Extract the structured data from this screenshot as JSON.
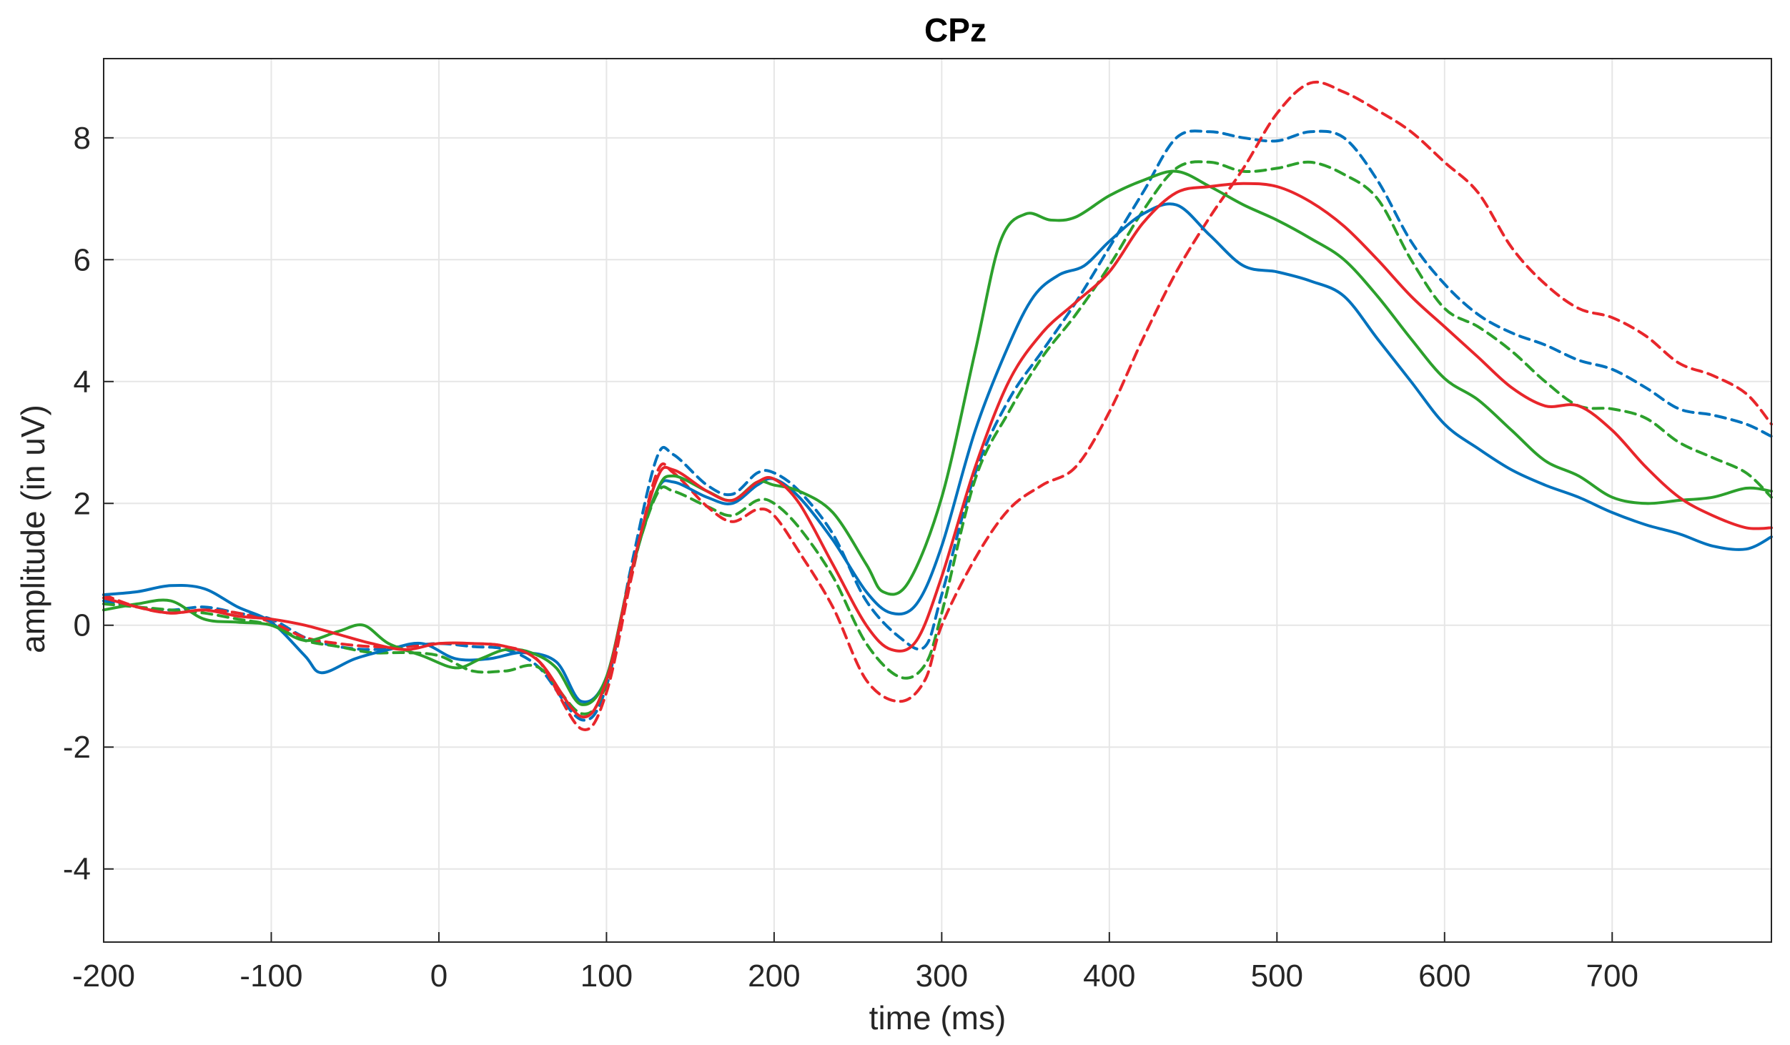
{
  "chart_data": {
    "type": "line",
    "title": "CPz",
    "xlabel": "time (ms)",
    "ylabel": "amplitude (in uV)",
    "xlim": [
      -200,
      795
    ],
    "ylim": [
      -5.2,
      9.3
    ],
    "xticks": [
      -200,
      -100,
      0,
      100,
      200,
      300,
      400,
      500,
      600,
      700
    ],
    "yticks": [
      -4,
      -2,
      0,
      2,
      4,
      6,
      8
    ],
    "grid": true,
    "legend": "none",
    "series": [
      {
        "name": "blue solid",
        "color": "#0072BD",
        "style": "solid",
        "x": [
          -200,
          -180,
          -160,
          -140,
          -120,
          -100,
          -80,
          -70,
          -50,
          -30,
          -10,
          10,
          30,
          50,
          70,
          85,
          100,
          115,
          130,
          140,
          160,
          175,
          190,
          200,
          215,
          235,
          255,
          270,
          285,
          300,
          320,
          340,
          355,
          370,
          385,
          400,
          420,
          440,
          460,
          480,
          500,
          520,
          540,
          560,
          580,
          600,
          620,
          640,
          660,
          680,
          700,
          720,
          740,
          760,
          780,
          795
        ],
        "y": [
          0.5,
          0.55,
          0.65,
          0.6,
          0.3,
          0.05,
          -0.5,
          -0.78,
          -0.55,
          -0.4,
          -0.3,
          -0.55,
          -0.55,
          -0.45,
          -0.6,
          -1.25,
          -0.85,
          0.9,
          2.2,
          2.35,
          2.1,
          2.0,
          2.3,
          2.4,
          2.1,
          1.4,
          0.55,
          0.2,
          0.35,
          1.3,
          3.2,
          4.6,
          5.4,
          5.75,
          5.9,
          6.3,
          6.75,
          6.9,
          6.4,
          5.9,
          5.8,
          5.65,
          5.4,
          4.7,
          4.0,
          3.3,
          2.9,
          2.55,
          2.3,
          2.1,
          1.85,
          1.65,
          1.5,
          1.3,
          1.25,
          1.45
        ]
      },
      {
        "name": "green solid",
        "color": "#2CA02C",
        "style": "solid",
        "x": [
          -200,
          -180,
          -160,
          -140,
          -120,
          -100,
          -80,
          -60,
          -45,
          -30,
          -10,
          10,
          25,
          40,
          55,
          70,
          85,
          100,
          115,
          130,
          140,
          160,
          175,
          190,
          200,
          215,
          235,
          255,
          265,
          280,
          300,
          320,
          335,
          350,
          365,
          380,
          400,
          420,
          440,
          460,
          480,
          500,
          520,
          540,
          560,
          580,
          600,
          620,
          640,
          660,
          680,
          700,
          720,
          740,
          760,
          780,
          795
        ],
        "y": [
          0.25,
          0.35,
          0.4,
          0.1,
          0.05,
          0.0,
          -0.25,
          -0.1,
          0.0,
          -0.3,
          -0.5,
          -0.7,
          -0.55,
          -0.4,
          -0.45,
          -0.7,
          -1.3,
          -0.85,
          0.9,
          2.2,
          2.45,
          2.2,
          2.05,
          2.35,
          2.3,
          2.2,
          1.85,
          1.0,
          0.55,
          0.7,
          2.1,
          4.5,
          6.3,
          6.75,
          6.65,
          6.7,
          7.05,
          7.3,
          7.45,
          7.2,
          6.9,
          6.65,
          6.35,
          6.0,
          5.4,
          4.7,
          4.05,
          3.7,
          3.2,
          2.7,
          2.45,
          2.1,
          2.0,
          2.05,
          2.1,
          2.25,
          2.2
        ]
      },
      {
        "name": "red solid",
        "color": "#E8262B",
        "style": "solid",
        "x": [
          -200,
          -180,
          -160,
          -140,
          -120,
          -100,
          -80,
          -60,
          -40,
          -20,
          0,
          20,
          40,
          60,
          85,
          100,
          115,
          130,
          140,
          160,
          175,
          190,
          200,
          215,
          235,
          255,
          270,
          285,
          300,
          320,
          340,
          360,
          380,
          400,
          420,
          440,
          460,
          480,
          500,
          520,
          540,
          560,
          580,
          600,
          620,
          640,
          660,
          680,
          700,
          720,
          740,
          760,
          780,
          795
        ],
        "y": [
          0.45,
          0.3,
          0.2,
          0.25,
          0.15,
          0.1,
          0.0,
          -0.15,
          -0.3,
          -0.4,
          -0.3,
          -0.3,
          -0.35,
          -0.6,
          -1.5,
          -0.9,
          0.9,
          2.4,
          2.55,
          2.2,
          2.05,
          2.35,
          2.4,
          2.0,
          1.0,
          0.0,
          -0.4,
          -0.25,
          0.8,
          2.6,
          4.0,
          4.8,
          5.3,
          5.8,
          6.6,
          7.1,
          7.2,
          7.25,
          7.2,
          6.95,
          6.55,
          6.0,
          5.4,
          4.9,
          4.4,
          3.9,
          3.6,
          3.6,
          3.2,
          2.6,
          2.1,
          1.8,
          1.6,
          1.6
        ]
      },
      {
        "name": "blue dashed",
        "color": "#0072BD",
        "style": "dashed",
        "x": [
          -200,
          -180,
          -160,
          -140,
          -120,
          -100,
          -80,
          -60,
          -40,
          -20,
          0,
          20,
          40,
          60,
          85,
          100,
          115,
          130,
          140,
          160,
          175,
          190,
          200,
          215,
          235,
          255,
          275,
          290,
          300,
          320,
          340,
          360,
          380,
          400,
          420,
          440,
          460,
          480,
          500,
          520,
          540,
          560,
          580,
          600,
          620,
          640,
          660,
          680,
          700,
          720,
          740,
          760,
          780,
          795
        ],
        "y": [
          0.4,
          0.3,
          0.25,
          0.3,
          0.2,
          0.1,
          -0.2,
          -0.35,
          -0.4,
          -0.35,
          -0.3,
          -0.35,
          -0.4,
          -0.7,
          -1.55,
          -1.0,
          1.0,
          2.75,
          2.8,
          2.3,
          2.15,
          2.5,
          2.5,
          2.2,
          1.5,
          0.4,
          -0.2,
          -0.35,
          0.5,
          2.5,
          3.7,
          4.5,
          5.3,
          6.2,
          7.1,
          8.0,
          8.1,
          8.0,
          7.95,
          8.1,
          8.0,
          7.3,
          6.3,
          5.6,
          5.1,
          4.8,
          4.6,
          4.35,
          4.2,
          3.9,
          3.55,
          3.45,
          3.3,
          3.1
        ]
      },
      {
        "name": "green dashed",
        "color": "#2CA02C",
        "style": "dashed",
        "x": [
          -200,
          -180,
          -160,
          -140,
          -120,
          -100,
          -80,
          -60,
          -40,
          -20,
          0,
          20,
          40,
          60,
          85,
          100,
          115,
          130,
          140,
          160,
          175,
          190,
          200,
          215,
          235,
          255,
          275,
          290,
          300,
          320,
          340,
          360,
          380,
          400,
          420,
          440,
          460,
          480,
          500,
          520,
          540,
          560,
          580,
          600,
          620,
          640,
          660,
          680,
          700,
          720,
          740,
          760,
          780,
          795
        ],
        "y": [
          0.35,
          0.3,
          0.25,
          0.2,
          0.1,
          0.0,
          -0.25,
          -0.35,
          -0.45,
          -0.45,
          -0.5,
          -0.75,
          -0.75,
          -0.7,
          -1.45,
          -0.95,
          0.9,
          2.15,
          2.2,
          1.95,
          1.8,
          2.05,
          2.0,
          1.6,
          0.8,
          -0.3,
          -0.85,
          -0.65,
          0.2,
          2.4,
          3.5,
          4.4,
          5.1,
          5.9,
          6.8,
          7.5,
          7.6,
          7.45,
          7.5,
          7.6,
          7.4,
          7.0,
          6.0,
          5.2,
          4.9,
          4.5,
          4.0,
          3.6,
          3.55,
          3.4,
          3.0,
          2.75,
          2.5,
          2.1
        ]
      },
      {
        "name": "red dashed",
        "color": "#E8262B",
        "style": "dashed",
        "x": [
          -200,
          -180,
          -160,
          -140,
          -120,
          -100,
          -80,
          -60,
          -40,
          -20,
          0,
          20,
          40,
          60,
          85,
          100,
          115,
          130,
          140,
          160,
          175,
          190,
          200,
          215,
          235,
          255,
          275,
          290,
          300,
          320,
          340,
          360,
          380,
          400,
          420,
          440,
          460,
          480,
          500,
          520,
          540,
          560,
          580,
          600,
          620,
          640,
          660,
          680,
          700,
          720,
          740,
          760,
          780,
          795
        ],
        "y": [
          0.5,
          0.3,
          0.2,
          0.25,
          0.2,
          0.05,
          -0.2,
          -0.3,
          -0.35,
          -0.35,
          -0.3,
          -0.3,
          -0.35,
          -0.6,
          -1.7,
          -1.1,
          0.8,
          2.5,
          2.5,
          1.95,
          1.7,
          1.9,
          1.8,
          1.2,
          0.3,
          -0.9,
          -1.25,
          -0.9,
          0.0,
          1.1,
          1.9,
          2.3,
          2.6,
          3.5,
          4.7,
          5.8,
          6.7,
          7.5,
          8.4,
          8.9,
          8.75,
          8.45,
          8.1,
          7.6,
          7.1,
          6.2,
          5.6,
          5.2,
          5.05,
          4.75,
          4.3,
          4.1,
          3.8,
          3.3
        ]
      }
    ]
  }
}
